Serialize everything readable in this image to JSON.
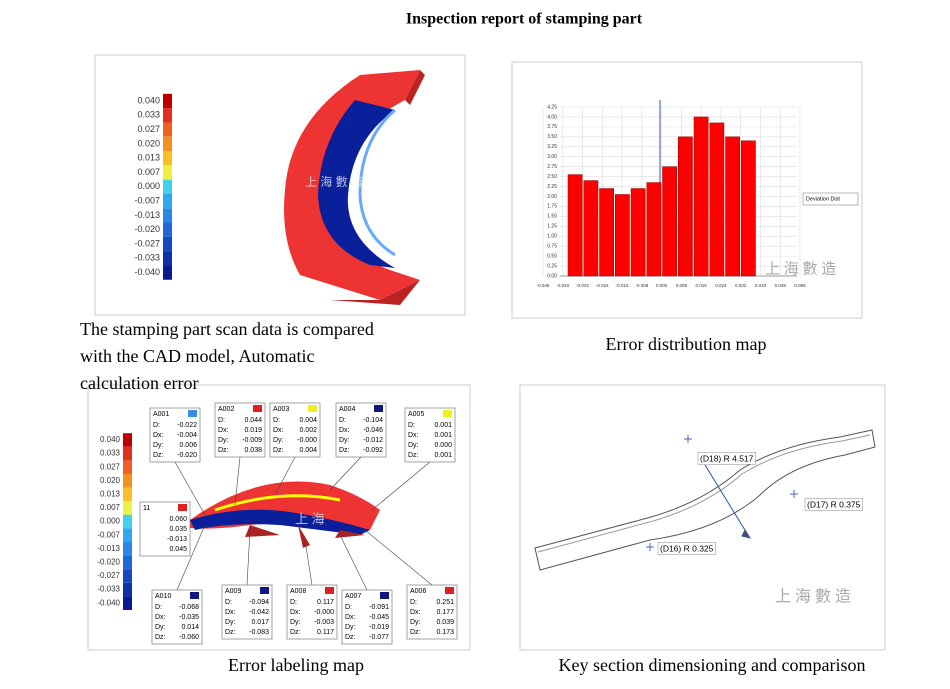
{
  "header": {
    "title": "Inspection report of stamping part"
  },
  "panels": [
    {
      "caption": [
        "The stamping part scan data is compared",
        "with the CAD model, Automatic",
        "calculation error"
      ],
      "legend": [
        "0.040",
        "0.033",
        "0.027",
        "0.020",
        "0.013",
        "0.007",
        "0.000",
        "-0.007",
        "-0.013",
        "-0.020",
        "-0.027",
        "-0.033",
        "-0.040"
      ]
    },
    {
      "caption": "Error distribution map",
      "chart": {
        "type": "bar",
        "categories": [
          null,
          null,
          null,
          null,
          null,
          null,
          null,
          null,
          null,
          null,
          null,
          null
        ],
        "values": [
          2.55,
          2.4,
          2.2,
          2.05,
          2.2,
          2.35,
          2.75,
          3.5,
          4.0,
          3.85,
          3.5,
          3.4
        ],
        "color": "#ff0000",
        "ylim": [
          0,
          4.25
        ],
        "yticks": [
          {
            "value": 0,
            "label": "0.00"
          },
          0.25,
          {
            "value": 0.5,
            "label": "0.50"
          },
          0.75,
          {
            "value": 1,
            "label": "1.00"
          },
          1.25,
          {
            "value": 1.5,
            "label": "1.50"
          },
          1.75,
          {
            "value": 2,
            "label": "2.00"
          },
          2.25,
          {
            "value": 2.5,
            "label": "2.50"
          },
          2.75,
          {
            "value": 3,
            "label": "3.00"
          },
          3.25,
          {
            "value": 3.5,
            "label": "3.50"
          },
          3.75,
          {
            "value": 4,
            "label": "4.00"
          },
          4.25
        ],
        "xtick_labels": [
          "-0.048",
          "-0.040",
          "-0.032",
          "-0.024",
          "-0.016",
          "-0.008",
          "0.000",
          "0.008",
          "0.016",
          "0.024",
          "0.032",
          "0.040",
          "0.048",
          "0.056"
        ],
        "legend": "Deviation Dist",
        "watermark": "上 海 數 造",
        "grid": true
      }
    },
    {
      "caption": "Error labeling map",
      "legend": [
        "0.040",
        "0.033",
        "0.027",
        "0.020",
        "0.013",
        "0.007",
        "0.000",
        "-0.007",
        "-0.013",
        "-0.020",
        "-0.027",
        "-0.033",
        "-0.040"
      ],
      "watermark": "上 海",
      "labels": [
        {
          "id": "A001",
          "rows": [
            [
              "D:",
              "-0.022"
            ],
            [
              "Dx:",
              "-0.004"
            ],
            [
              "Dy:",
              "0.006"
            ],
            [
              "Dz:",
              "-0.020"
            ]
          ]
        },
        {
          "id": "A002",
          "rows": [
            [
              "D:",
              "0.044"
            ],
            [
              "Dx:",
              "0.019"
            ],
            [
              "Dy:",
              "-0.009"
            ],
            [
              "Dz:",
              "0.038"
            ]
          ]
        },
        {
          "id": "A003",
          "rows": [
            [
              "D:",
              "0.004"
            ],
            [
              "Dx:",
              "0.002"
            ],
            [
              "Dy:",
              "-0.000"
            ],
            [
              "Dz:",
              "0.004"
            ]
          ]
        },
        {
          "id": "A004",
          "rows": [
            [
              "D:",
              "-0.104"
            ],
            [
              "Dx:",
              "-0.046"
            ],
            [
              "Dy:",
              "-0.012"
            ],
            [
              "Dz:",
              "-0.092"
            ]
          ]
        },
        {
          "id": "A005",
          "rows": [
            [
              "D:",
              "0.001"
            ],
            [
              "Dx:",
              "0.001"
            ],
            [
              "Dy:",
              "0.000"
            ],
            [
              "Dz:",
              "0.001"
            ]
          ]
        },
        {
          "id": "11",
          "rows": [
            [
              "",
              "0.060"
            ],
            [
              "",
              "0.035"
            ],
            [
              "",
              "-0.013"
            ],
            [
              "",
              "0.045"
            ]
          ]
        },
        {
          "id": "A010",
          "rows": [
            [
              "D:",
              "-0.068"
            ],
            [
              "Dx:",
              "-0.035"
            ],
            [
              "Dy:",
              "0.014"
            ],
            [
              "Dz:",
              "-0.060"
            ]
          ]
        },
        {
          "id": "A009",
          "rows": [
            [
              "D:",
              "-0.094"
            ],
            [
              "Dx:",
              "-0.042"
            ],
            [
              "Dy:",
              "0.017"
            ],
            [
              "Dz:",
              "-0.083"
            ]
          ]
        },
        {
          "id": "A008",
          "rows": [
            [
              "D:",
              "0.117"
            ],
            [
              "Dx:",
              "-0.000"
            ],
            [
              "Dy:",
              "-0.003"
            ],
            [
              "Dz:",
              "0.117"
            ]
          ]
        },
        {
          "id": "A007",
          "rows": [
            [
              "D:",
              "-0.091"
            ],
            [
              "Dx:",
              "-0.045"
            ],
            [
              "Dy:",
              "-0.019"
            ],
            [
              "Dz:",
              "-0.077"
            ]
          ]
        },
        {
          "id": "A006",
          "rows": [
            [
              "D:",
              "0.251"
            ],
            [
              "Dx:",
              "0.177"
            ],
            [
              "Dy:",
              "0.039"
            ],
            [
              "Dz:",
              "0.173"
            ]
          ]
        }
      ]
    },
    {
      "caption": "Key section dimensioning and comparison",
      "dimensions": [
        "(D18) R 4.517",
        "(D17) R 0.375",
        "(D16) R 0.325"
      ],
      "watermark": "上 海 數 造"
    }
  ]
}
